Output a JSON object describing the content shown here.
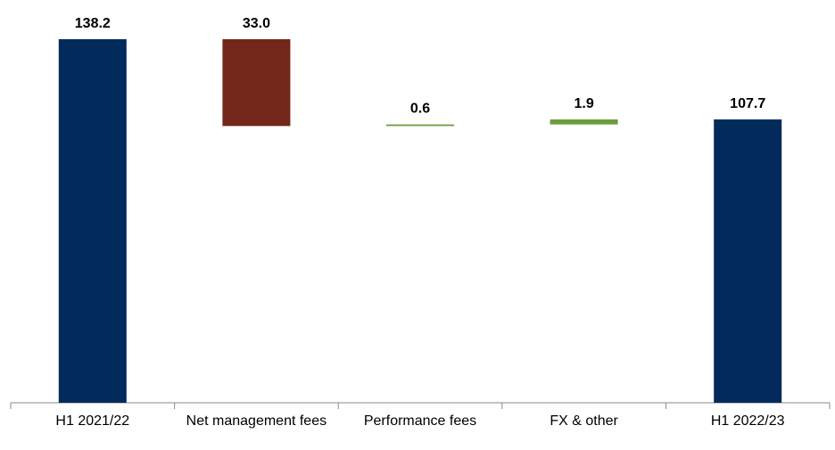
{
  "chart_data": {
    "type": "waterfall",
    "categories": [
      "H1 2021/22",
      "Net management fees",
      "Performance fees",
      "FX & other",
      "H1 2022/23"
    ],
    "values": [
      138.2,
      33.0,
      0.6,
      1.9,
      107.7
    ],
    "value_labels": [
      "138.2",
      "33.0",
      "0.6",
      "1.9",
      "107.7"
    ],
    "kinds": [
      "total",
      "decrease",
      "increase",
      "increase",
      "total"
    ],
    "colors": {
      "total": "#022b5b",
      "decrease": "#72271a",
      "increase": "#6a9c3a"
    }
  }
}
